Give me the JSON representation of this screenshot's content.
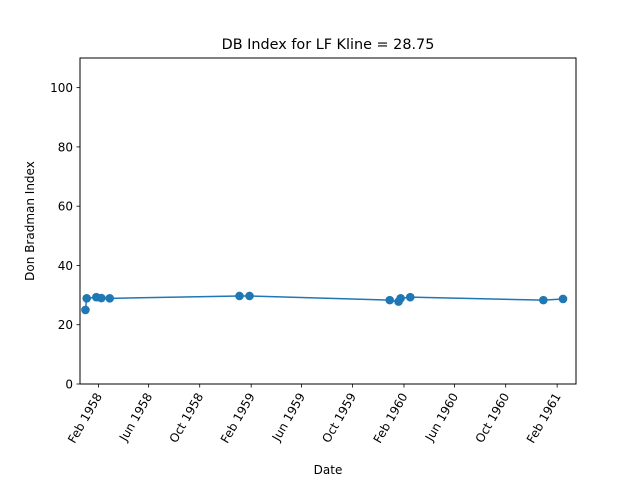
{
  "chart_data": {
    "type": "line",
    "title": "DB Index for LF Kline = 28.75",
    "xlabel": "Date",
    "ylabel": "Don Bradman Index",
    "ylim": [
      0,
      110
    ],
    "xlim": [
      "1957-12-19",
      "1961-03-18"
    ],
    "yticks": [
      0,
      20,
      40,
      60,
      80,
      100
    ],
    "xticks": [
      {
        "date": "1958-02-01",
        "label": "Feb 1958"
      },
      {
        "date": "1958-06-01",
        "label": "Jun 1958"
      },
      {
        "date": "1958-10-01",
        "label": "Oct 1958"
      },
      {
        "date": "1959-02-01",
        "label": "Feb 1959"
      },
      {
        "date": "1959-06-01",
        "label": "Jun 1959"
      },
      {
        "date": "1959-10-01",
        "label": "Oct 1959"
      },
      {
        "date": "1960-02-01",
        "label": "Feb 1960"
      },
      {
        "date": "1960-06-01",
        "label": "Jun 1960"
      },
      {
        "date": "1960-10-01",
        "label": "Oct 1960"
      },
      {
        "date": "1961-02-01",
        "label": "Feb 1961"
      }
    ],
    "grid": false,
    "color": "#1f77b4",
    "series": [
      {
        "x": [
          "1958-01-01",
          "1958-01-04",
          "1958-01-27",
          "1958-02-08",
          "1958-02-28",
          "1959-01-04",
          "1959-01-28",
          "1959-12-29",
          "1960-01-19",
          "1960-01-24",
          "1960-02-16",
          "1960-12-30",
          "1961-02-15"
        ],
        "y": [
          25.0,
          28.9,
          29.3,
          29.0,
          28.9,
          29.7,
          29.7,
          28.3,
          27.8,
          28.9,
          29.3,
          28.3,
          28.7
        ]
      }
    ]
  }
}
